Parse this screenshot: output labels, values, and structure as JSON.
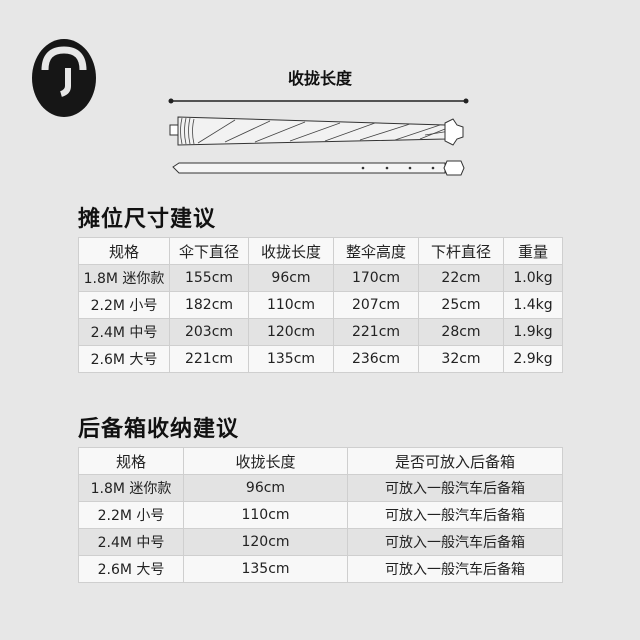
{
  "figure": {
    "title": "收拢长度"
  },
  "table1": {
    "heading": "摊位尺寸建议",
    "columns": [
      "规格",
      "伞下直径",
      "收拢长度",
      "整伞高度",
      "下杆直径",
      "重量"
    ],
    "rows": [
      [
        "1.8M 迷你款",
        "155cm",
        "96cm",
        "170cm",
        "22cm",
        "1.0kg"
      ],
      [
        "2.2M 小号",
        "182cm",
        "110cm",
        "207cm",
        "25cm",
        "1.4kg"
      ],
      [
        "2.4M 中号",
        "203cm",
        "120cm",
        "221cm",
        "28cm",
        "1.9kg"
      ],
      [
        "2.6M 大号",
        "221cm",
        "135cm",
        "236cm",
        "32cm",
        "2.9kg"
      ]
    ]
  },
  "table2": {
    "heading": "后备箱收纳建议",
    "columns": [
      "规格",
      "收拢长度",
      "是否可放入后备箱"
    ],
    "rows": [
      [
        "1.8M 迷你款",
        "96cm",
        "可放入一般汽车后备箱"
      ],
      [
        "2.2M 小号",
        "110cm",
        "可放入一般汽车后备箱"
      ],
      [
        "2.4M 中号",
        "120cm",
        "可放入一般汽车后备箱"
      ],
      [
        "2.6M 大号",
        "135cm",
        "可放入一般汽车后备箱"
      ]
    ]
  }
}
